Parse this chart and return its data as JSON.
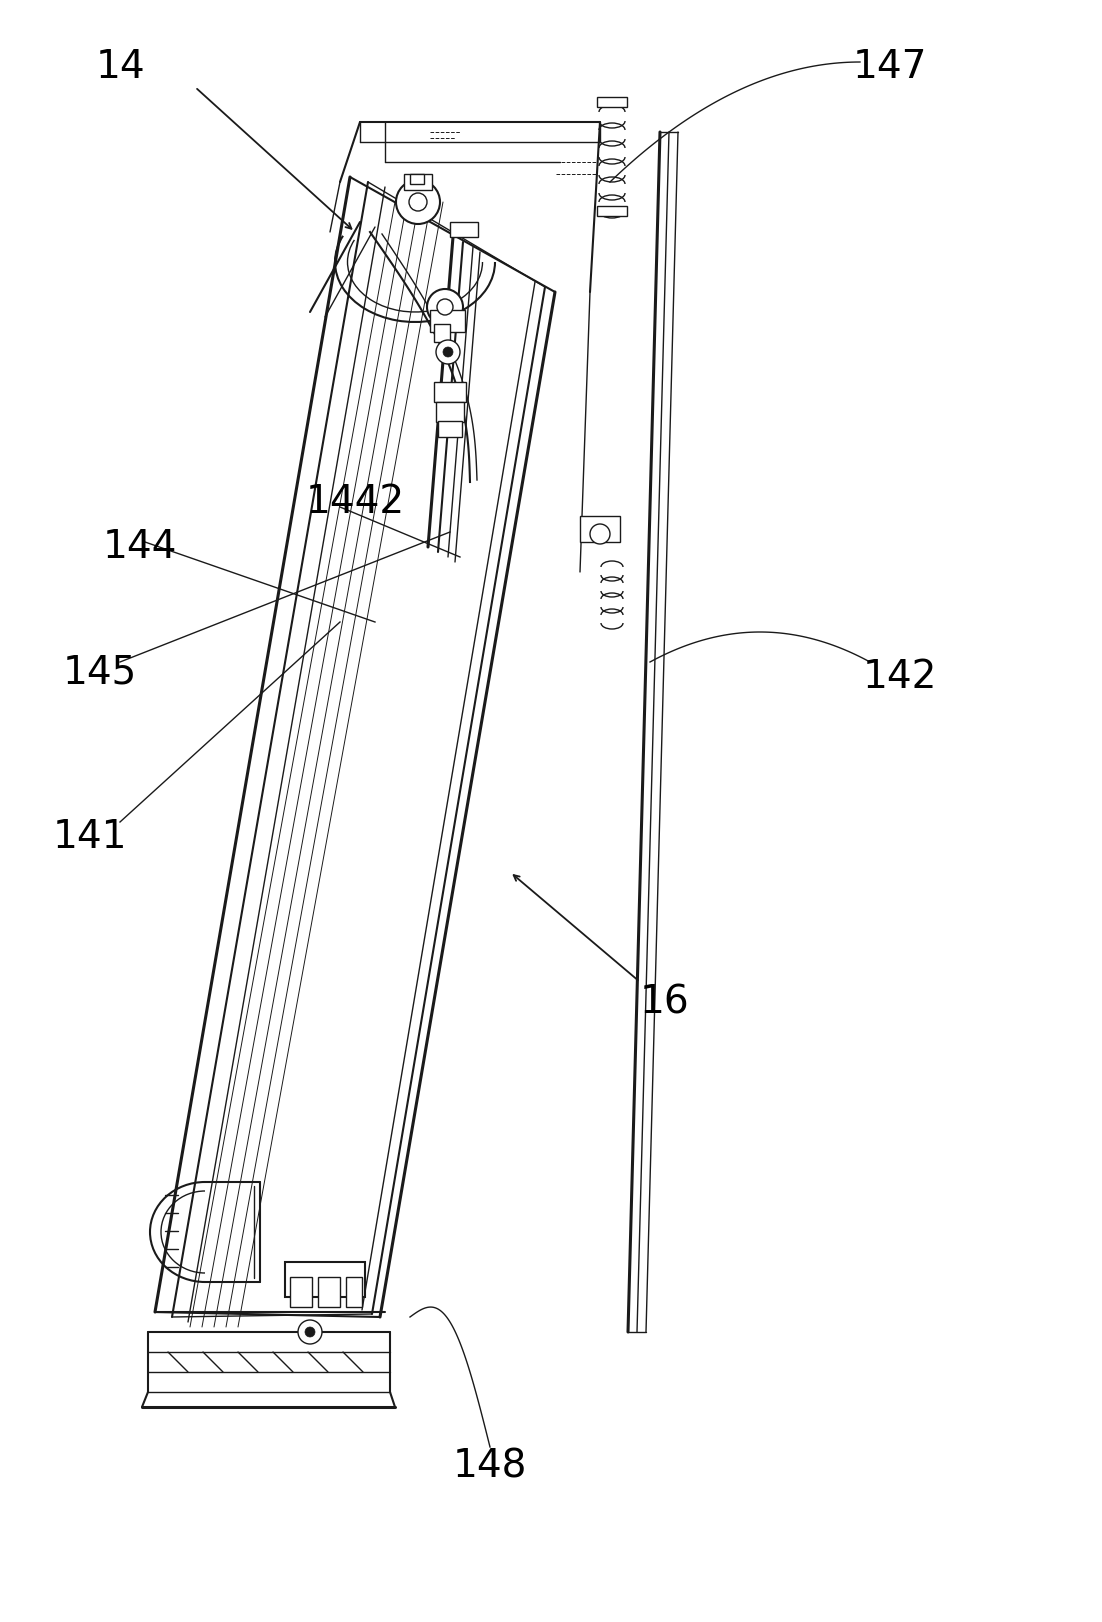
{
  "bg_color": "#ffffff",
  "line_color": "#1a1a1a",
  "label_color": "#000000",
  "fig_width": 11.02,
  "fig_height": 16.22,
  "dpi": 100
}
